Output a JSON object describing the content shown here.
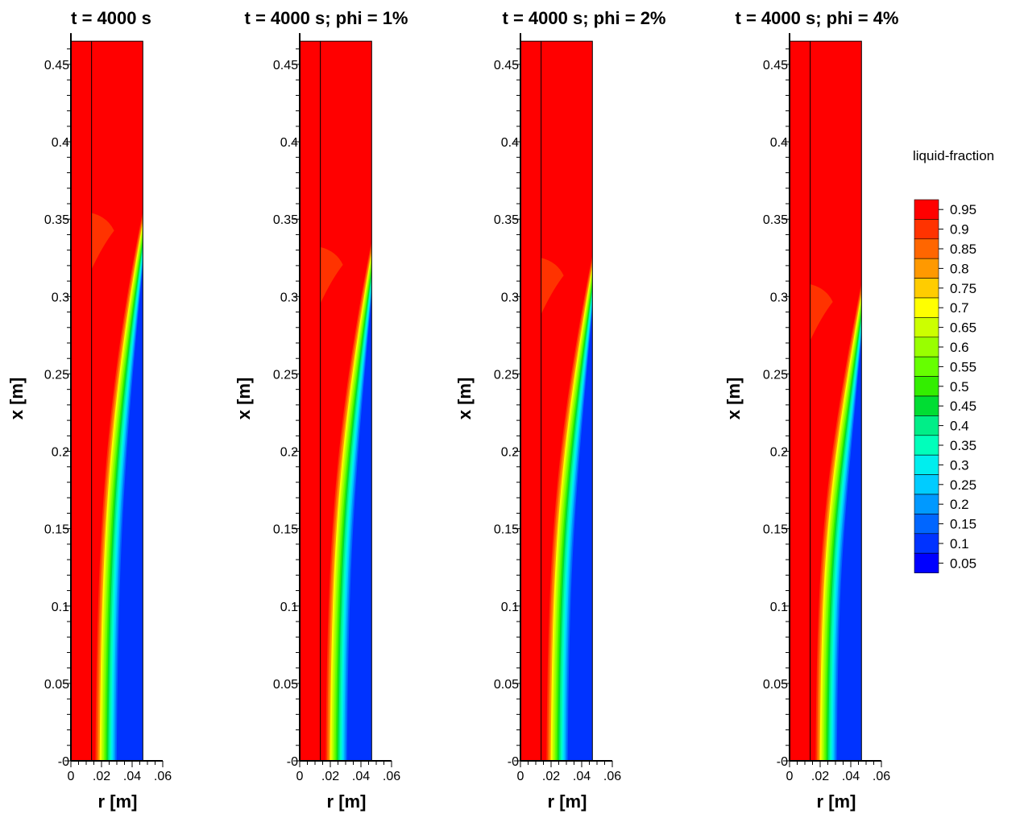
{
  "chart_data": {
    "type": "heatmap",
    "variable": "liquid-fraction",
    "panels": [
      {
        "title": "t = 4000 s",
        "xlabel": "r [m]",
        "ylabel": "x [m]",
        "front_top_x": 0.355,
        "front_left_r": 0.016,
        "pocket_top_x": 0.354
      },
      {
        "title": "t = 4000 s; phi = 1%",
        "xlabel": "r [m]",
        "ylabel": "x [m]",
        "front_top_x": 0.336,
        "front_left_r": 0.017,
        "pocket_top_x": 0.332
      },
      {
        "title": "t = 4000 s; phi = 2%",
        "xlabel": "r [m]",
        "ylabel": "x [m]",
        "front_top_x": 0.327,
        "front_left_r": 0.017,
        "pocket_top_x": 0.325
      },
      {
        "title": "t = 4000 s; phi = 4%",
        "xlabel": "r [m]",
        "ylabel": "x [m]",
        "front_top_x": 0.309,
        "front_left_r": 0.017,
        "pocket_top_x": 0.308
      }
    ],
    "y_ticks": [
      "-0",
      "0.05",
      "0.1",
      "0.15",
      "0.2",
      "0.25",
      "0.3",
      "0.35",
      "0.4",
      "0.45"
    ],
    "y_tick_values": [
      0,
      0.05,
      0.1,
      0.15,
      0.2,
      0.25,
      0.3,
      0.35,
      0.4,
      0.45
    ],
    "x_ticks": [
      "0",
      ".02",
      ".04",
      ".06"
    ],
    "x_tick_values": [
      0,
      0.02,
      0.04,
      0.06
    ],
    "xlim": [
      0,
      0.06
    ],
    "ylim": [
      0,
      0.465
    ],
    "domain_r_max": 0.047,
    "wall_r": 0.0135,
    "legend": {
      "title": "liquid-fraction",
      "levels": [
        "0.95",
        "0.9",
        "0.85",
        "0.8",
        "0.75",
        "0.7",
        "0.65",
        "0.6",
        "0.55",
        "0.5",
        "0.45",
        "0.4",
        "0.35",
        "0.3",
        "0.25",
        "0.2",
        "0.15",
        "0.1",
        "0.05"
      ],
      "colors": [
        "#ff0000",
        "#ff3300",
        "#ff6600",
        "#ff9900",
        "#ffcc00",
        "#ffff00",
        "#ccff00",
        "#99ff00",
        "#66ff00",
        "#33ee00",
        "#00dd33",
        "#00ee88",
        "#00ffbb",
        "#00eeee",
        "#00ccff",
        "#0099ff",
        "#0066ff",
        "#0033ff",
        "#0000ff"
      ]
    }
  }
}
